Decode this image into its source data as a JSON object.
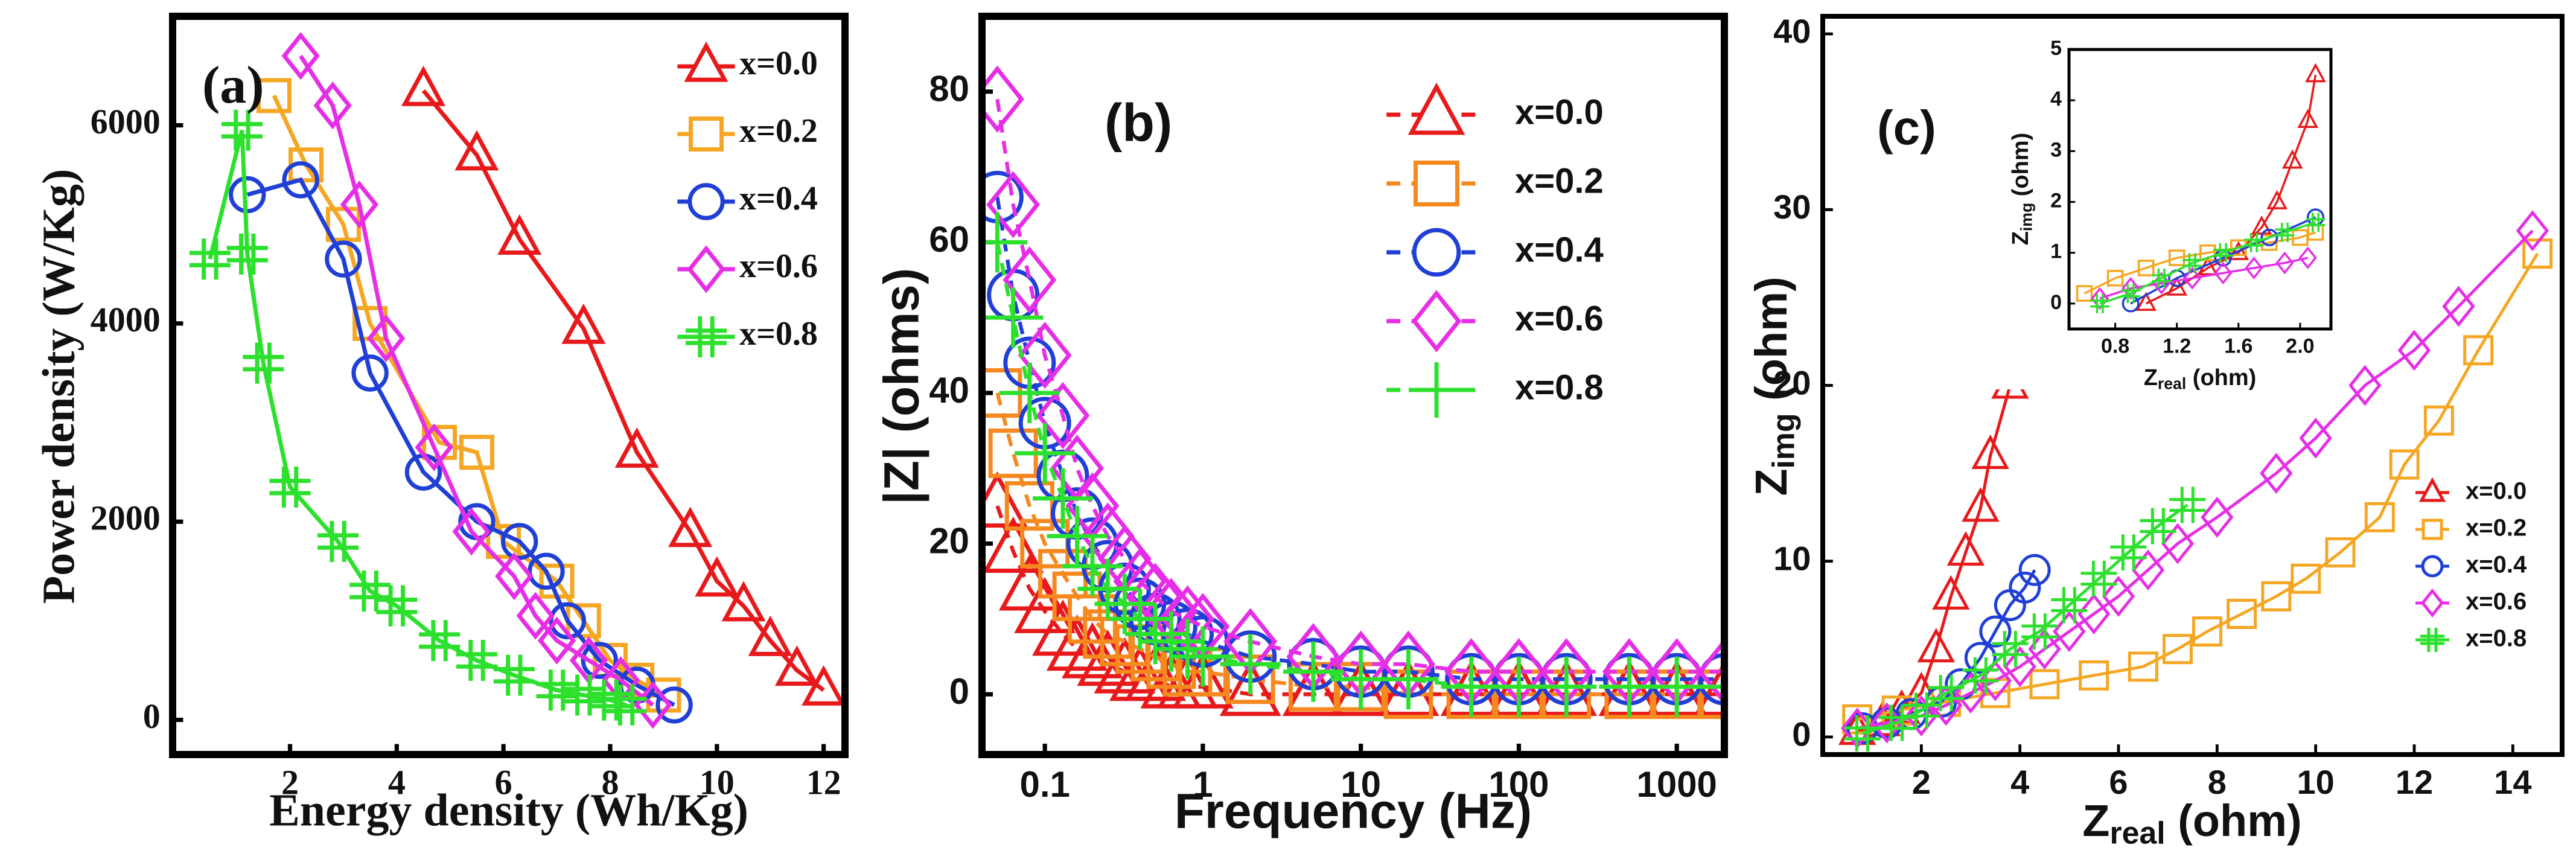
{
  "chart_data": [
    {
      "type": "line",
      "panel_label": "(a)",
      "x_label": "Energy density (Wh/Kg)",
      "y_label": "Power density (W/Kg)",
      "xlim": [
        -0.2,
        12.4
      ],
      "xticks": [
        2,
        4,
        6,
        8,
        10,
        12
      ],
      "ylim": [
        -350,
        7100
      ],
      "yticks": [
        0,
        2000,
        4000,
        6000
      ],
      "legend": "upper right",
      "series": [
        {
          "name": "x=0.0",
          "color": "#e8191b",
          "marker": "triangle",
          "x": [
            4.5,
            5.5,
            6.3,
            7.5,
            8.5,
            9.5,
            10,
            10.5,
            11,
            11.5,
            12
          ],
          "values": [
            6350,
            5700,
            4850,
            3950,
            2700,
            1900,
            1400,
            1150,
            800,
            500,
            300
          ]
        },
        {
          "name": "x=0.2",
          "color": "#f5a623",
          "marker": "square",
          "x": [
            1.7,
            2.3,
            3,
            3.5,
            4.8,
            5.5,
            6,
            7,
            7.5,
            8,
            8.5,
            9
          ],
          "values": [
            6300,
            5600,
            5000,
            4000,
            2800,
            2700,
            1800,
            1400,
            1000,
            600,
            400,
            250
          ]
        },
        {
          "name": "x=0.4",
          "color": "#1f3fd6",
          "marker": "circle",
          "x": [
            1.2,
            2.2,
            3,
            3.5,
            4.5,
            5.5,
            6.3,
            6.8,
            7.2,
            7.8,
            8.5,
            9.2
          ],
          "values": [
            5300,
            5450,
            4650,
            3500,
            2500,
            2000,
            1800,
            1500,
            1000,
            600,
            350,
            150
          ]
        },
        {
          "name": "x=0.6",
          "color": "#e62ee6",
          "marker": "diamond",
          "x": [
            2.2,
            2.8,
            3.3,
            3.8,
            4.7,
            5.4,
            6.2,
            6.6,
            7,
            7.6,
            8.2,
            8.8
          ],
          "values": [
            6700,
            6200,
            5200,
            3850,
            2750,
            1900,
            1450,
            1050,
            800,
            600,
            400,
            150
          ]
        },
        {
          "name": "x=0.8",
          "color": "#2ee02e",
          "marker": "hash",
          "x": [
            0.5,
            1.1,
            1.2,
            1.5,
            2,
            2.9,
            3.5,
            4,
            4.8,
            5.5,
            6.2,
            7,
            7.5,
            8,
            8.3
          ],
          "values": [
            4650,
            5950,
            4700,
            3600,
            2350,
            1800,
            1300,
            1150,
            800,
            600,
            450,
            300,
            250,
            200,
            150
          ]
        }
      ]
    },
    {
      "type": "line",
      "panel_label": "(b)",
      "x_label": "Frequency (Hz)",
      "y_label": "|Z| (ohms)",
      "xscale": "log",
      "xlim": [
        0.04,
        2000
      ],
      "xticks": [
        0.1,
        1,
        10,
        100,
        1000
      ],
      "ylim": [
        -8,
        90
      ],
      "yticks": [
        0,
        20,
        40,
        60,
        80
      ],
      "legend": "upper right",
      "x": [
        0.05,
        0.063,
        0.08,
        0.1,
        0.13,
        0.16,
        0.2,
        0.25,
        0.32,
        0.4,
        0.5,
        0.63,
        0.8,
        1,
        2,
        5,
        10,
        20,
        50,
        100,
        200,
        500,
        1000,
        2000
      ],
      "series": [
        {
          "name": "x=0.0",
          "color": "#e8191b",
          "marker": "triangle",
          "values": [
            25,
            19,
            14,
            11,
            8,
            6,
            5,
            4,
            3,
            2,
            2,
            1,
            1,
            1,
            0,
            0,
            0,
            0,
            0,
            0,
            0,
            0,
            0,
            0
          ]
        },
        {
          "name": "x=0.2",
          "color": "#f5891f",
          "marker": "square",
          "values": [
            40,
            32,
            25,
            20,
            16,
            13,
            10,
            8,
            7,
            6,
            5,
            4,
            3,
            3,
            2,
            1,
            1,
            0,
            0,
            0,
            0,
            0,
            0,
            0
          ]
        },
        {
          "name": "x=0.4",
          "color": "#1f3fd6",
          "marker": "circle",
          "values": [
            66,
            53,
            44,
            36,
            29,
            24,
            20,
            17,
            14,
            12,
            10,
            9,
            8,
            7,
            5,
            4,
            3,
            3,
            2,
            2,
            2,
            2,
            2,
            2
          ]
        },
        {
          "name": "x=0.6",
          "color": "#e62ee6",
          "marker": "diamond",
          "values": [
            79,
            65,
            55,
            45,
            37,
            30,
            25,
            21,
            18,
            15,
            13,
            11,
            10,
            9,
            7,
            5,
            4,
            4,
            3,
            3,
            3,
            3,
            3,
            3
          ]
        },
        {
          "name": "x=0.8",
          "color": "#2ee02e",
          "marker": "plus",
          "values": [
            60,
            50,
            40,
            32,
            26,
            21,
            17,
            14,
            12,
            10,
            8,
            7,
            6,
            5,
            4,
            3,
            2,
            2,
            1,
            1,
            1,
            1,
            1,
            1
          ]
        }
      ]
    },
    {
      "type": "line",
      "panel_label": "(c)",
      "x_label": {
        "main": "Z",
        "sub": "real",
        "unit": " (ohm)"
      },
      "y_label": {
        "main": "Z",
        "sub": "img",
        "unit": " (ohm)"
      },
      "xlim": [
        0,
        15
      ],
      "xticks": [
        2,
        4,
        6,
        8,
        10,
        12,
        14
      ],
      "ylim": [
        -1,
        41
      ],
      "yticks": [
        0,
        10,
        20,
        30,
        40
      ],
      "legend": "lower right",
      "series": [
        {
          "name": "x=0.0",
          "color": "#e8191b",
          "marker": "triangle",
          "x": [
            0.7,
            1.2,
            1.6,
            2,
            2.3,
            2.6,
            2.9,
            3.2,
            3.4,
            3.8
          ],
          "values": [
            0.3,
            0.8,
            1.5,
            2.5,
            5,
            8,
            10.5,
            13,
            16,
            20
          ]
        },
        {
          "name": "x=0.2",
          "color": "#f5a623",
          "marker": "square",
          "x": [
            0.7,
            1.5,
            2.5,
            3.5,
            4.5,
            5.5,
            6.5,
            7.2,
            7.8,
            8.5,
            9.2,
            9.8,
            10.5,
            11.3,
            11.8,
            12.5,
            13.3,
            14.5
          ],
          "values": [
            1,
            1.5,
            2,
            2.5,
            3,
            3.5,
            4,
            5,
            6,
            7,
            8,
            9,
            10.5,
            12.5,
            15.5,
            18,
            22,
            27.5
          ]
        },
        {
          "name": "x=0.4",
          "color": "#1f3fd6",
          "marker": "circle",
          "x": [
            0.8,
            1.3,
            1.8,
            2.4,
            2.8,
            3.2,
            3.5,
            3.8,
            4.1,
            4.3
          ],
          "values": [
            0.5,
            0.8,
            1.3,
            2,
            3,
            4.5,
            6,
            7.5,
            8.5,
            9.5
          ]
        },
        {
          "name": "x=0.6",
          "color": "#e62ee6",
          "marker": "diamond",
          "x": [
            0.7,
            1.3,
            2,
            2.5,
            3,
            3.5,
            4,
            4.5,
            5,
            5.5,
            6,
            6.6,
            7.2,
            8,
            9.2,
            10,
            11,
            12,
            12.9,
            14.4
          ],
          "values": [
            0.5,
            0.8,
            1.2,
            1.8,
            2.5,
            3.2,
            4,
            5,
            6,
            7,
            8,
            9.5,
            11,
            12.5,
            15,
            17,
            20,
            22,
            24.5,
            28.8
          ]
        },
        {
          "name": "x=0.8",
          "color": "#2ee02e",
          "marker": "hash",
          "x": [
            0.8,
            1.5,
            2,
            2.5,
            3.2,
            3.8,
            4.4,
            5,
            5.6,
            6.2,
            6.8,
            7.4
          ],
          "values": [
            0.2,
            0.8,
            1.5,
            2.5,
            3.5,
            5,
            6,
            7.5,
            9,
            10.5,
            12,
            13.2
          ]
        }
      ]
    },
    {
      "type": "line",
      "x_label": {
        "main": "Z",
        "sub": "real",
        "unit": " (ohm)"
      },
      "y_label": {
        "main": "Z",
        "sub": "img",
        "unit": " (ohm)"
      },
      "xlim": [
        0.5,
        2.2
      ],
      "xticks": [
        0.8,
        1.2,
        1.6,
        {
          "value": 2,
          "label": "2.0"
        }
      ],
      "ylim": [
        -0.5,
        5
      ],
      "yticks": [
        0,
        1,
        2,
        3,
        4,
        5
      ],
      "series": [
        {
          "color": "#e8191b",
          "marker": "triangle",
          "x": [
            1.0,
            1.2,
            1.4,
            1.6,
            1.75,
            1.85,
            1.95,
            2.05,
            2.1
          ],
          "values": [
            0,
            0.3,
            0.7,
            1,
            1.5,
            2,
            2.8,
            3.6,
            4.5
          ]
        },
        {
          "color": "#f5a623",
          "marker": "square",
          "x": [
            0.6,
            0.8,
            1.0,
            1.2,
            1.4,
            1.6,
            1.8,
            2.0,
            2.1
          ],
          "values": [
            0.2,
            0.5,
            0.7,
            0.9,
            1.0,
            1.1,
            1.2,
            1.3,
            1.4
          ]
        },
        {
          "color": "#1f3fd6",
          "marker": "circle",
          "x": [
            0.9,
            1.2,
            1.5,
            1.8,
            2.1
          ],
          "values": [
            0,
            0.5,
            0.9,
            1.3,
            1.7
          ]
        },
        {
          "color": "#e62ee6",
          "marker": "diamond",
          "x": [
            0.7,
            0.9,
            1.1,
            1.3,
            1.5,
            1.7,
            1.9,
            2.05
          ],
          "values": [
            0.1,
            0.3,
            0.4,
            0.5,
            0.6,
            0.7,
            0.8,
            0.9
          ]
        },
        {
          "color": "#2ee02e",
          "marker": "hash",
          "x": [
            0.7,
            0.9,
            1.1,
            1.3,
            1.5,
            1.7,
            1.9,
            2.1
          ],
          "values": [
            0,
            0.2,
            0.5,
            0.8,
            1,
            1.2,
            1.4,
            1.6
          ]
        }
      ]
    }
  ]
}
